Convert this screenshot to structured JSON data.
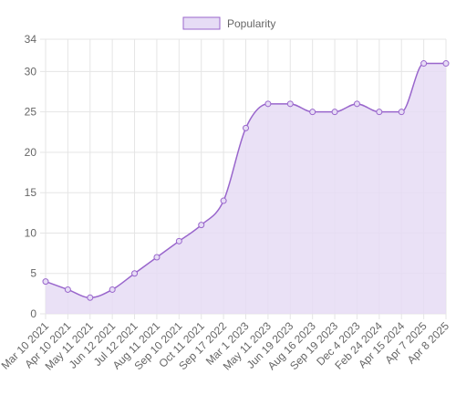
{
  "chart_data": {
    "type": "area",
    "x": [
      "Mar 10 2021",
      "Apr 10 2021",
      "May 11 2021",
      "Jun 12 2021",
      "Jul 12 2021",
      "Aug 11 2021",
      "Sep 10 2021",
      "Oct 11 2021",
      "Sep 17 2022",
      "Mar 1 2023",
      "May 11 2023",
      "Jun 19 2023",
      "Aug 16 2023",
      "Sep 19 2023",
      "Dec 4 2023",
      "Feb 24 2024",
      "Apr 15 2024",
      "Apr 7 2025",
      "Apr 8 2025"
    ],
    "series": [
      {
        "name": "Popularity",
        "values": [
          4,
          3,
          2,
          3,
          5,
          7,
          9,
          11,
          14,
          23,
          26,
          26,
          25,
          25,
          26,
          25,
          25,
          31,
          31
        ]
      }
    ],
    "ylim": [
      0,
      34
    ],
    "yticks": [
      0,
      5,
      10,
      15,
      20,
      25,
      30,
      34
    ],
    "grid": true,
    "legend": "top-center",
    "colors": {
      "line": "#9966cc",
      "fill": "#e6dcf5",
      "grid": "#e5e5e5",
      "text": "#666666"
    }
  }
}
